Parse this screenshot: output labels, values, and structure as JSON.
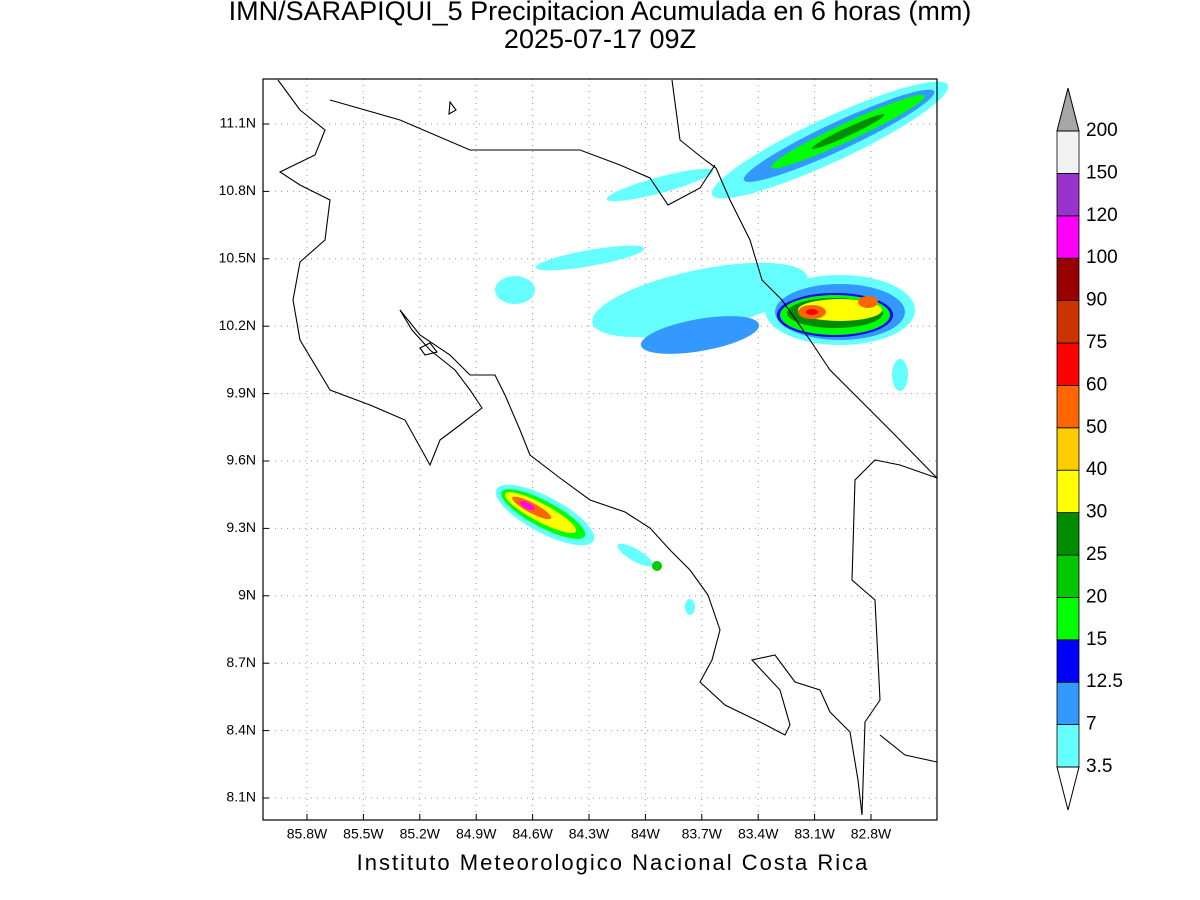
{
  "title": "IMN/SARAPIQUI_5 Precipitacion Acumulada en 6 horas (mm)",
  "subtitle": "2025-07-17 09Z",
  "map": {
    "lat_ticks": [
      "11.1N",
      "10.8N",
      "10.5N",
      "10.2N",
      "9.9N",
      "9.6N",
      "9.3N",
      "9N",
      "8.7N",
      "8.4N",
      "8.1N"
    ],
    "lon_ticks": [
      "85.8W",
      "85.5W",
      "85.2W",
      "84.9W",
      "84.6W",
      "84.3W",
      "84W",
      "83.7W",
      "83.4W",
      "83.1W",
      "82.8W"
    ],
    "grid": true
  },
  "colorbar": {
    "levels": [
      3.5,
      7,
      12.5,
      15,
      20,
      25,
      30,
      40,
      50,
      60,
      75,
      90,
      100,
      120,
      150,
      200
    ],
    "colors": [
      "#66ffff",
      "#3399ff",
      "#0000ff",
      "#00ff00",
      "#00c800",
      "#008c00",
      "#ffff00",
      "#ffcc00",
      "#ff6600",
      "#ff0000",
      "#cc3300",
      "#990000",
      "#ff00ff",
      "#9933cc",
      "#f2f2f2"
    ],
    "under_color": "#ffffff",
    "over_color": "#a6a6a6"
  },
  "footer": "Instituto Meteorologico Nacional Costa Rica"
}
